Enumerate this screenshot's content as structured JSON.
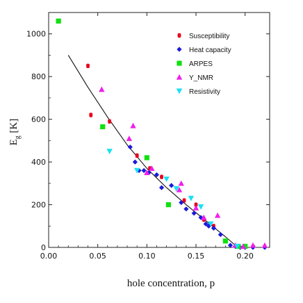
{
  "chart_data": {
    "type": "scatter",
    "xlabel": "hole concentration, p",
    "ylabel_main": "E",
    "ylabel_sub": "g",
    "ylabel_unit": "[K]",
    "xlim": [
      0.0,
      0.225
    ],
    "ylim": [
      0,
      1100
    ],
    "x_ticks": [
      0.0,
      0.05,
      0.1,
      0.15,
      0.2
    ],
    "x_tick_labels": [
      "0.00",
      "0.05",
      "0.10",
      "0.15",
      "0.20"
    ],
    "y_ticks": [
      0,
      200,
      400,
      600,
      800,
      1000
    ],
    "y_tick_labels": [
      "0",
      "200",
      "400",
      "600",
      "800",
      "1000"
    ],
    "legend_position": "top-right",
    "fit_line": {
      "x": [
        0.02,
        0.04,
        0.06,
        0.08,
        0.1,
        0.12,
        0.14,
        0.16,
        0.18,
        0.19,
        0.2
      ],
      "y": [
        900,
        750,
        610,
        480,
        370,
        280,
        200,
        125,
        50,
        10,
        0
      ]
    },
    "series": [
      {
        "name": "Susceptibility",
        "marker": "circle",
        "color": "#e8001c",
        "points": [
          [
            0.04,
            850
          ],
          [
            0.043,
            620
          ],
          [
            0.062,
            590
          ],
          [
            0.09,
            430
          ],
          [
            0.103,
            370
          ],
          [
            0.115,
            330
          ],
          [
            0.138,
            220
          ],
          [
            0.15,
            200
          ],
          [
            0.158,
            130
          ],
          [
            0.168,
            100
          ]
        ]
      },
      {
        "name": "Heat capacity",
        "marker": "diamond",
        "color": "#1a1adb",
        "points": [
          [
            0.083,
            470
          ],
          [
            0.088,
            400
          ],
          [
            0.092,
            360
          ],
          [
            0.097,
            360
          ],
          [
            0.102,
            350
          ],
          [
            0.11,
            340
          ],
          [
            0.115,
            280
          ],
          [
            0.125,
            290
          ],
          [
            0.135,
            210
          ],
          [
            0.14,
            180
          ],
          [
            0.148,
            160
          ],
          [
            0.155,
            140
          ],
          [
            0.16,
            110
          ],
          [
            0.163,
            100
          ],
          [
            0.168,
            90
          ],
          [
            0.175,
            60
          ],
          [
            0.18,
            30
          ],
          [
            0.185,
            10
          ],
          [
            0.19,
            5
          ],
          [
            0.195,
            0
          ],
          [
            0.2,
            0
          ],
          [
            0.208,
            0
          ],
          [
            0.22,
            0
          ]
        ]
      },
      {
        "name": "ARPES",
        "marker": "square",
        "color": "#11e011",
        "points": [
          [
            0.01,
            1060
          ],
          [
            0.055,
            565
          ],
          [
            0.1,
            420
          ],
          [
            0.122,
            200
          ],
          [
            0.18,
            30
          ],
          [
            0.193,
            5
          ],
          [
            0.2,
            5
          ]
        ]
      },
      {
        "name": "Y_NMR",
        "marker": "triangle-up",
        "color": "#ef1fe8",
        "points": [
          [
            0.054,
            740
          ],
          [
            0.082,
            510
          ],
          [
            0.086,
            570
          ],
          [
            0.1,
            350
          ],
          [
            0.105,
            370
          ],
          [
            0.133,
            270
          ],
          [
            0.135,
            300
          ],
          [
            0.15,
            185
          ],
          [
            0.158,
            140
          ],
          [
            0.172,
            150
          ],
          [
            0.19,
            10
          ],
          [
            0.198,
            5
          ],
          [
            0.208,
            10
          ],
          [
            0.22,
            10
          ]
        ]
      },
      {
        "name": "Resistivity",
        "marker": "triangle-down",
        "color": "#19e0f2",
        "points": [
          [
            0.062,
            450
          ],
          [
            0.09,
            360
          ],
          [
            0.12,
            320
          ],
          [
            0.13,
            275
          ],
          [
            0.145,
            230
          ],
          [
            0.155,
            190
          ],
          [
            0.165,
            110
          ],
          [
            0.192,
            5
          ]
        ]
      }
    ]
  }
}
